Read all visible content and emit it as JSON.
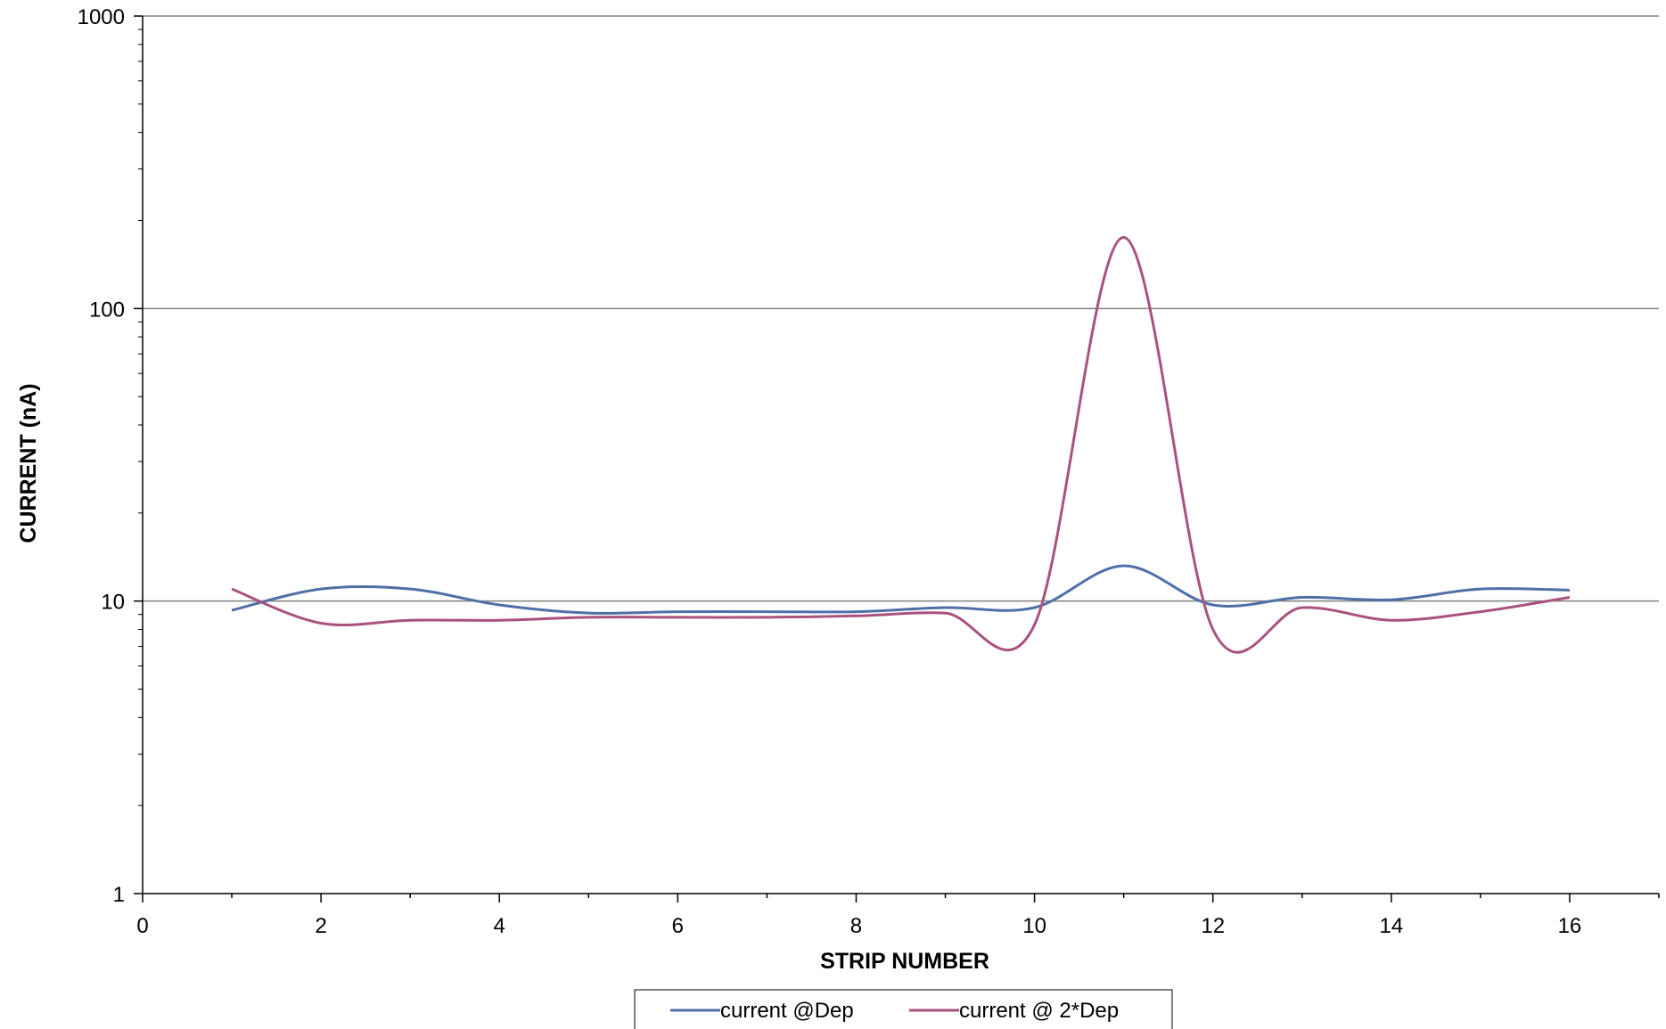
{
  "chart_data": {
    "type": "line",
    "xlabel": "STRIP NUMBER",
    "ylabel": "CURRENT (nA)",
    "xlim": [
      0,
      17
    ],
    "ylim": [
      1,
      1000
    ],
    "yscale": "log",
    "x_ticks": [
      0,
      2,
      4,
      6,
      8,
      10,
      12,
      14,
      16
    ],
    "y_ticks": [
      1,
      10,
      100,
      1000
    ],
    "grid": "horizontal major lines",
    "legend_position": "bottom-center",
    "x": [
      1,
      2,
      3,
      4,
      5,
      6,
      7,
      8,
      9,
      10,
      11,
      12,
      13,
      14,
      15,
      16
    ],
    "series": [
      {
        "name": "current @Dep",
        "color": "#4f6fa8",
        "values": [
          9.3,
          11.0,
          11.0,
          9.7,
          9.1,
          9.2,
          9.2,
          9.2,
          9.5,
          9.5,
          13.2,
          9.7,
          10.3,
          10.1,
          11.0,
          10.9
        ]
      },
      {
        "name": "current @ 2*Dep",
        "color": "#a9527f",
        "values": [
          11.0,
          8.4,
          8.6,
          8.6,
          8.8,
          8.8,
          8.8,
          8.9,
          9.1,
          8.3,
          175,
          8.0,
          9.5,
          8.6,
          9.2,
          10.3
        ]
      }
    ]
  }
}
